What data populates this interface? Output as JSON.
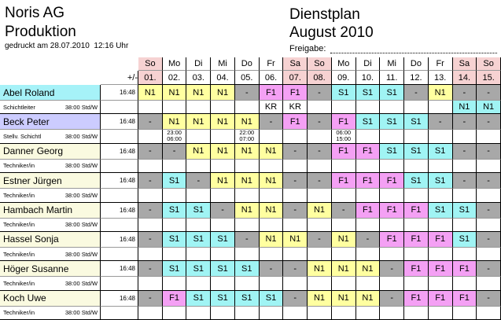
{
  "header": {
    "company": "Noris AG",
    "department": "Produktion",
    "printed": "gedruckt am 28.07.2010  12:16 Uhr",
    "title": "Dienstplan",
    "period": "August 2010",
    "approval": "Freigabe:"
  },
  "table": {
    "balance_header": "+/-",
    "days": [
      {
        "weekday": "So",
        "date": "01.",
        "color": "#f6d2d2"
      },
      {
        "weekday": "Mo",
        "date": "02."
      },
      {
        "weekday": "Di",
        "date": "03."
      },
      {
        "weekday": "Mi",
        "date": "04."
      },
      {
        "weekday": "Do",
        "date": "05."
      },
      {
        "weekday": "Fr",
        "date": "06."
      },
      {
        "weekday": "Sa",
        "date": "07.",
        "color": "#f6d2d2"
      },
      {
        "weekday": "So",
        "date": "08.",
        "color": "#f6d2d2"
      },
      {
        "weekday": "Mo",
        "date": "09."
      },
      {
        "weekday": "Di",
        "date": "10."
      },
      {
        "weekday": "Mi",
        "date": "11."
      },
      {
        "weekday": "Do",
        "date": "12."
      },
      {
        "weekday": "Fr",
        "date": "13."
      },
      {
        "weekday": "Sa",
        "date": "14.",
        "color": "#f6d2d2"
      },
      {
        "weekday": "So",
        "date": "15.",
        "color": "#f6d2d2"
      }
    ],
    "shift_colors": {
      "N1": "#ffffa0",
      "F1": "#f4a0f4",
      "S1": "#a0f4f4",
      "-": "#a8a8a8"
    },
    "extra_colors": {
      "N1": "#a0f4f4",
      "KR": "#ffffff"
    },
    "employees": [
      {
        "name": "Abel Roland",
        "color": "#a6f2f8",
        "balance": "16:48",
        "role": "Schichtleiter",
        "hours": "38:00 Std/W",
        "shifts": [
          "N1",
          "N1",
          "N1",
          "N1",
          "-",
          "F1",
          "F1",
          "-",
          "S1",
          "S1",
          "S1",
          "-",
          "N1",
          "-",
          "-"
        ],
        "extra": [
          null,
          null,
          null,
          null,
          null,
          "KR",
          "KR",
          null,
          null,
          null,
          null,
          null,
          null,
          "N1",
          "N1"
        ]
      },
      {
        "name": "Beck Peter",
        "color": "#ccccff",
        "balance": "16:48",
        "role": "Stellv. Schichtl",
        "hours": "38:00 Std/W",
        "shifts": [
          "-",
          "N1",
          "N1",
          "N1",
          "N1",
          "-",
          "F1",
          "-",
          "F1",
          "S1",
          "S1",
          "S1",
          "-",
          "-",
          "-"
        ],
        "extra": [
          null,
          [
            "23:00",
            "06:00"
          ],
          null,
          null,
          [
            "22:00",
            "07:00"
          ],
          null,
          null,
          null,
          [
            "06:00",
            "15:00"
          ],
          null,
          null,
          null,
          null,
          null,
          null
        ]
      },
      {
        "name": "Danner Georg",
        "color": "#fafae0",
        "balance": "16:48",
        "role": "Techniker/in",
        "hours": "38:00 Std/W",
        "shifts": [
          "-",
          "-",
          "N1",
          "N1",
          "N1",
          "N1",
          "-",
          "-",
          "F1",
          "F1",
          "S1",
          "S1",
          "S1",
          "-",
          "-"
        ]
      },
      {
        "name": "Estner Jürgen",
        "color": "#fafae0",
        "balance": "16:48",
        "role": "Techniker/in",
        "hours": "38:00 Std/W",
        "shifts": [
          "-",
          "S1",
          "-",
          "N1",
          "N1",
          "N1",
          "-",
          "-",
          "F1",
          "F1",
          "F1",
          "S1",
          "S1",
          "-",
          "-"
        ]
      },
      {
        "name": "Hambach Martin",
        "color": "#fafae0",
        "balance": "16:48",
        "role": "Techniker/in",
        "hours": "38:00 Std/W",
        "shifts": [
          "-",
          "S1",
          "S1",
          "-",
          "N1",
          "N1",
          "-",
          "N1",
          "-",
          "F1",
          "F1",
          "F1",
          "S1",
          "S1",
          "-"
        ]
      },
      {
        "name": "Hassel Sonja",
        "color": "#fafae0",
        "balance": "16:48",
        "role": "Techniker/in",
        "hours": "38:00 Std/W",
        "shifts": [
          "-",
          "S1",
          "S1",
          "S1",
          "-",
          "N1",
          "N1",
          "-",
          "N1",
          "-",
          "F1",
          "F1",
          "F1",
          "S1",
          "-"
        ]
      },
      {
        "name": "Höger Susanne",
        "color": "#fafae0",
        "balance": "16:48",
        "role": "Techniker/in",
        "hours": "38:00 Std/W",
        "shifts": [
          "-",
          "S1",
          "S1",
          "S1",
          "S1",
          "-",
          "-",
          "N1",
          "N1",
          "N1",
          "-",
          "F1",
          "F1",
          "F1",
          "-"
        ]
      },
      {
        "name": "Koch Uwe",
        "color": "#fafae0",
        "balance": "16:48",
        "role": "Techniker/in",
        "hours": "38:00 Std/W",
        "shifts": [
          "-",
          "F1",
          "S1",
          "S1",
          "S1",
          "S1",
          "-",
          "N1",
          "N1",
          "N1",
          "-",
          "F1",
          "F1",
          "F1",
          "-"
        ]
      }
    ]
  }
}
